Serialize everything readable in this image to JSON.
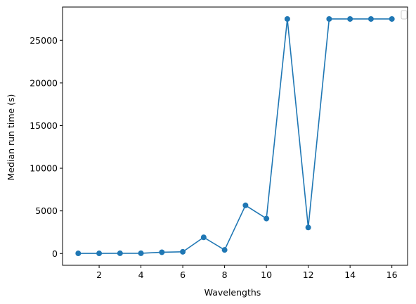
{
  "chart_data": {
    "type": "line",
    "title": "",
    "xlabel": "Wavelengths",
    "ylabel": "Median run time (s)",
    "xlim": [
      0.25,
      16.75
    ],
    "ylim": [
      -1380,
      28900
    ],
    "xticks": [
      2,
      4,
      6,
      8,
      10,
      12,
      14,
      16
    ],
    "yticks": [
      0,
      5000,
      10000,
      15000,
      20000,
      25000
    ],
    "grid": false,
    "legend": "top-right (empty)",
    "series": [
      {
        "color": "#1f77b4",
        "x": [
          1,
          2,
          3,
          4,
          5,
          6,
          7,
          8,
          9,
          10,
          11,
          12,
          13,
          14,
          15,
          16
        ],
        "y": [
          20,
          20,
          30,
          30,
          150,
          200,
          1900,
          420,
          5650,
          4100,
          27500,
          3050,
          27500,
          27500,
          27500,
          27500
        ]
      }
    ]
  }
}
